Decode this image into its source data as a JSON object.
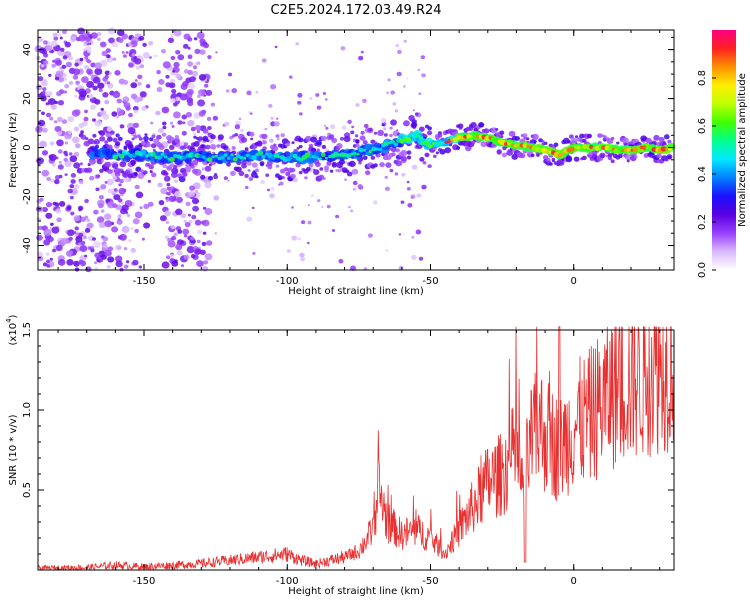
{
  "title": "C2E5.2024.172.03.49.R24",
  "chart_data": [
    {
      "type": "heatmap",
      "xlabel": "Height of straight line (km)",
      "ylabel": "Frequency (Hz)",
      "xlim": [
        -187,
        35
      ],
      "ylim": [
        -50,
        48
      ],
      "xticks": [
        -150,
        -100,
        -50,
        0
      ],
      "yticks": [
        -40,
        -20,
        0,
        20,
        40
      ],
      "colorbar": {
        "label": "Normalized spectral amplitude",
        "range": [
          0.0,
          1.0
        ],
        "ticks": [
          "0.0",
          "0.2",
          "0.4",
          "0.6",
          "0.8"
        ],
        "colors": [
          "#ffffff",
          "#d9b8ff",
          "#9a40ff",
          "#5a00e0",
          "#1a10ff",
          "#0080ff",
          "#00e8ff",
          "#00ff90",
          "#40ff00",
          "#c0ff00",
          "#ffee00",
          "#ff9000",
          "#ff2020",
          "#ff0080"
        ]
      },
      "ridge": {
        "x": [
          -168,
          -160,
          -150,
          -140,
          -130,
          -120,
          -110,
          -100,
          -90,
          -80,
          -70,
          -60,
          -55,
          -50,
          -45,
          -40,
          -35,
          -30,
          -25,
          -20,
          -15,
          -10,
          -5,
          0,
          5,
          10,
          15,
          20,
          25,
          30,
          35
        ],
        "y": [
          -2,
          -3,
          -3,
          -4,
          -4,
          -4,
          -3,
          -4,
          -4,
          -3,
          -1,
          3,
          5,
          1,
          2,
          4,
          5,
          4,
          2,
          1,
          0,
          -1,
          -3,
          0,
          0,
          0,
          -1,
          -1,
          0,
          -1,
          0
        ]
      }
    },
    {
      "type": "line",
      "xlabel": "Height of straight line (km)",
      "ylabel": "SNR (10 * v/v)",
      "multiplier": "(x10",
      "multiplier_exp": "4",
      "multiplier_close": ")",
      "xlim": [
        -187,
        35
      ],
      "ylim": [
        0,
        1.5
      ],
      "xticks": [
        -150,
        -100,
        -50,
        0
      ],
      "yticks": [
        0.5,
        1.0,
        1.5
      ],
      "ytick_labels": [
        "0.5",
        "1.0",
        "1.5"
      ],
      "color": "#e83030",
      "series": [
        {
          "x": [
            -187,
            -170,
            -160,
            -150,
            -140,
            -130,
            -120,
            -110,
            -100,
            -95,
            -90,
            -85,
            -80,
            -75,
            -70,
            -68,
            -65,
            -60,
            -55,
            -50,
            -45,
            -40,
            -35,
            -30,
            -25,
            -20,
            -18,
            -15,
            -12,
            -10,
            -5,
            0,
            5,
            10,
            15,
            20,
            25,
            30,
            35
          ],
          "y": [
            0.01,
            0.015,
            0.03,
            0.02,
            0.03,
            0.04,
            0.06,
            0.08,
            0.1,
            0.06,
            0.04,
            0.06,
            0.08,
            0.12,
            0.25,
            0.5,
            0.3,
            0.22,
            0.25,
            0.2,
            0.1,
            0.25,
            0.4,
            0.55,
            0.6,
            0.75,
            0.5,
            0.8,
            0.9,
            0.85,
            0.75,
            0.9,
            0.95,
            1.05,
            1.15,
            1.2,
            1.25,
            1.3,
            1.35
          ]
        }
      ]
    }
  ]
}
